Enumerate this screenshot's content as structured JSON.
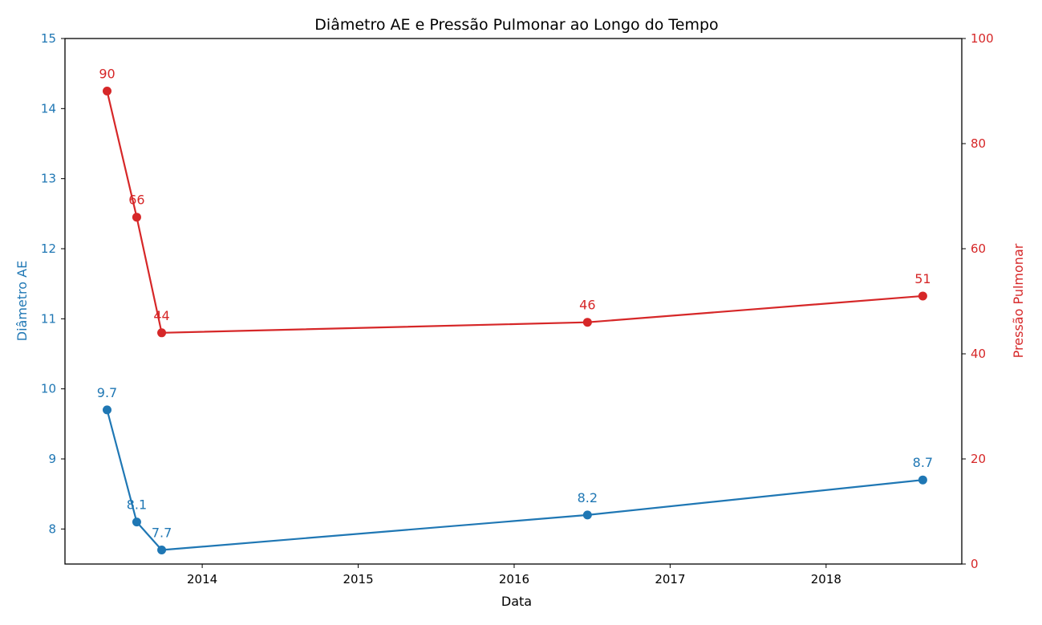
{
  "chart_data": {
    "type": "line",
    "title": "Diâmetro AE e Pressão Pulmonar ao Longo do Tempo",
    "xlabel": "Data",
    "x_ticks": [
      "2014",
      "2015",
      "2016",
      "2017",
      "2018"
    ],
    "x_tick_values": [
      2014,
      2015,
      2016,
      2017,
      2018
    ],
    "xlim": [
      2013.12,
      2018.87
    ],
    "x": [
      2013.39,
      2013.58,
      2013.74,
      2016.47,
      2018.62
    ],
    "series": [
      {
        "name": "Diâmetro AE",
        "axis": "left",
        "color": "#1f77b4",
        "values": [
          9.7,
          8.1,
          7.7,
          8.2,
          8.7
        ],
        "labels": [
          "9.7",
          "8.1",
          "7.7",
          "8.2",
          "8.7"
        ]
      },
      {
        "name": "Pressão Pulmonar",
        "axis": "right",
        "color": "#d62728",
        "values": [
          90,
          66,
          44,
          46,
          51
        ],
        "labels": [
          "90",
          "66",
          "44",
          "46",
          "51"
        ]
      }
    ],
    "y_left": {
      "label": "Diâmetro AE",
      "ylim": [
        7.5,
        15
      ],
      "ticks": [
        "8",
        "9",
        "10",
        "11",
        "12",
        "13",
        "14",
        "15"
      ],
      "tick_values": [
        8,
        9,
        10,
        11,
        12,
        13,
        14,
        15
      ],
      "color": "#1f77b4"
    },
    "y_right": {
      "label": "Pressão Pulmonar",
      "ylim": [
        0,
        100
      ],
      "ticks": [
        "0",
        "20",
        "40",
        "60",
        "80",
        "100"
      ],
      "tick_values": [
        0,
        20,
        40,
        60,
        80,
        100
      ],
      "color": "#d62728"
    },
    "grid": false,
    "legend": "none"
  }
}
